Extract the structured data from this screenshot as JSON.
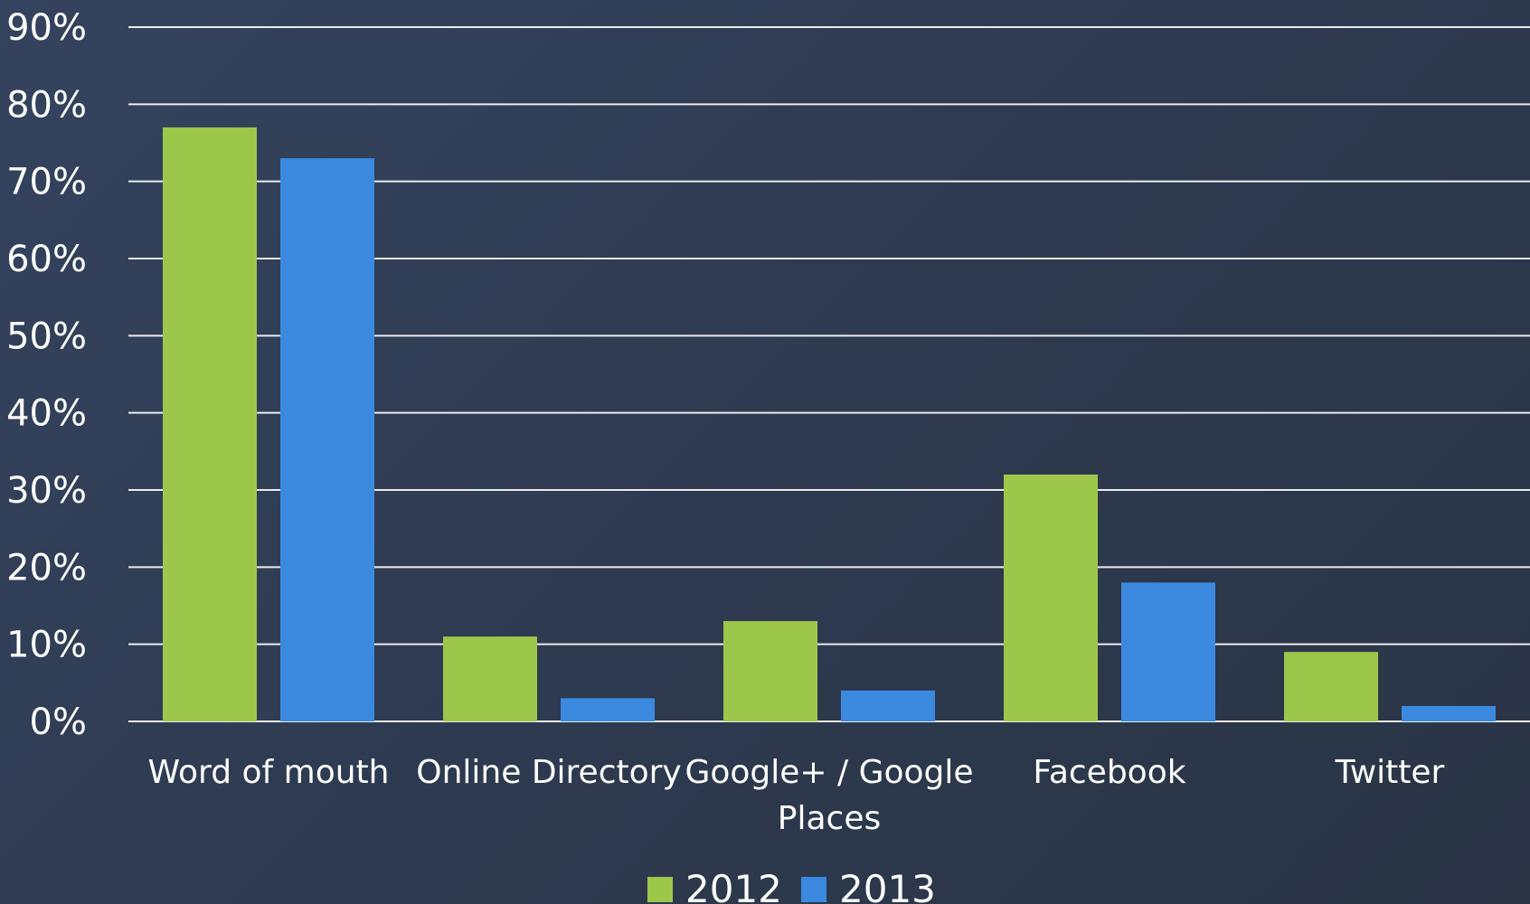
{
  "chart_data": {
    "type": "bar",
    "title": "",
    "xlabel": "",
    "ylabel": "",
    "categories": [
      [
        "Word of mouth"
      ],
      [
        "Online Directory"
      ],
      [
        "Google+ / Google",
        "Places"
      ],
      [
        "Facebook"
      ],
      [
        "Twitter"
      ]
    ],
    "series": [
      {
        "name": "2012",
        "color": "#9dc74b",
        "values": [
          77,
          11,
          13,
          32,
          9
        ]
      },
      {
        "name": "2013",
        "color": "#3b8ae0",
        "values": [
          73,
          3,
          4,
          18,
          2
        ]
      }
    ],
    "ylim": [
      0,
      90
    ],
    "yticks": [
      "0%",
      "10%",
      "20%",
      "30%",
      "40%",
      "50%",
      "60%",
      "70%",
      "80%",
      "90%"
    ],
    "grid": true,
    "legend_position": "bottom"
  }
}
